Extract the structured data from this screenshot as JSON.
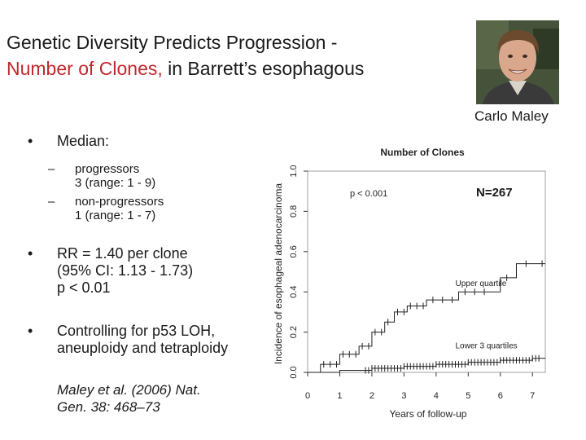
{
  "slide": {
    "title_line1": "Genetic Diversity Predicts Progression -",
    "title_highlight": "Number of Clones,",
    "title_rest": " in Barrett’s esophagous",
    "photo_caption": "Carlo Maley",
    "bullets": [
      {
        "marker": "•",
        "text": "Median:"
      },
      {
        "marker": "•",
        "text": "RR = 1.40 per clone\n(95% CI: 1.13 - 1.73)\np < 0.01"
      },
      {
        "marker": "•",
        "text": "Controlling for p53 LOH,\naneuploidy and tetraploidy"
      }
    ],
    "sub_bullets": [
      {
        "marker": "–",
        "text": "progressors\n3 (range: 1 - 9)"
      },
      {
        "marker": "–",
        "text": "non-progressors\n1 (range: 1 - 7)"
      }
    ],
    "reference": "Maley et al. (2006) Nat.\nGen. 38: 468–73",
    "n_label": "N=267"
  },
  "colors": {
    "title_highlight": "#c0282d",
    "curve": "#222222",
    "axis": "#333333"
  },
  "chart_data": {
    "type": "line",
    "title": "Number of Clones",
    "xlabel": "Years of follow-up",
    "ylabel": "Incidence of esophageal adenocarcinoma",
    "xlim": [
      0,
      7.4
    ],
    "ylim": [
      0,
      1.0
    ],
    "x_ticks": [
      "0",
      "1",
      "2",
      "3",
      "4",
      "5",
      "6",
      "7"
    ],
    "y_ticks": [
      "0.0",
      "0.2",
      "0.4",
      "0.6",
      "0.8",
      "1.0"
    ],
    "annotation": "p < 0.001",
    "grid": false,
    "series": [
      {
        "name": "Upper quartile",
        "step_points": [
          [
            0,
            0
          ],
          [
            0.4,
            0.04
          ],
          [
            1.0,
            0.09
          ],
          [
            1.6,
            0.13
          ],
          [
            2.0,
            0.2
          ],
          [
            2.4,
            0.25
          ],
          [
            2.7,
            0.3
          ],
          [
            3.1,
            0.33
          ],
          [
            3.7,
            0.36
          ],
          [
            4.1,
            0.36
          ],
          [
            4.7,
            0.4
          ],
          [
            5.8,
            0.4
          ],
          [
            6.0,
            0.47
          ],
          [
            6.5,
            0.54
          ],
          [
            7.4,
            0.54
          ]
        ],
        "censor_x": [
          0.5,
          0.7,
          0.9,
          1.1,
          1.3,
          1.5,
          1.7,
          1.9,
          2.1,
          2.3,
          2.5,
          2.8,
          3.0,
          3.2,
          3.4,
          3.6,
          3.9,
          4.2,
          4.5,
          4.9,
          5.2,
          5.5,
          6.2,
          6.8,
          7.3
        ],
        "label_x": 4.6,
        "label_y": 0.43
      },
      {
        "name": "Lower 3 quartiles",
        "step_points": [
          [
            0,
            0
          ],
          [
            1.0,
            0.01
          ],
          [
            2.0,
            0.02
          ],
          [
            3.0,
            0.03
          ],
          [
            4.0,
            0.04
          ],
          [
            5.0,
            0.05
          ],
          [
            6.0,
            0.06
          ],
          [
            7.0,
            0.07
          ],
          [
            7.4,
            0.07
          ]
        ],
        "censor_x": [
          1.8,
          1.9,
          2.0,
          2.1,
          2.2,
          2.3,
          2.4,
          2.5,
          2.6,
          2.7,
          2.8,
          2.9,
          3.0,
          3.1,
          3.2,
          3.3,
          3.4,
          3.5,
          3.6,
          3.7,
          3.8,
          3.9,
          4.0,
          4.1,
          4.2,
          4.3,
          4.4,
          4.5,
          4.6,
          4.7,
          4.8,
          4.9,
          5.0,
          5.1,
          5.2,
          5.3,
          5.4,
          5.5,
          5.6,
          5.7,
          5.8,
          5.9,
          6.0,
          6.1,
          6.2,
          6.3,
          6.4,
          6.5,
          6.6,
          6.7,
          6.8,
          6.9,
          7.0,
          7.1,
          7.2
        ],
        "label_x": 4.6,
        "label_y": 0.12
      }
    ]
  }
}
